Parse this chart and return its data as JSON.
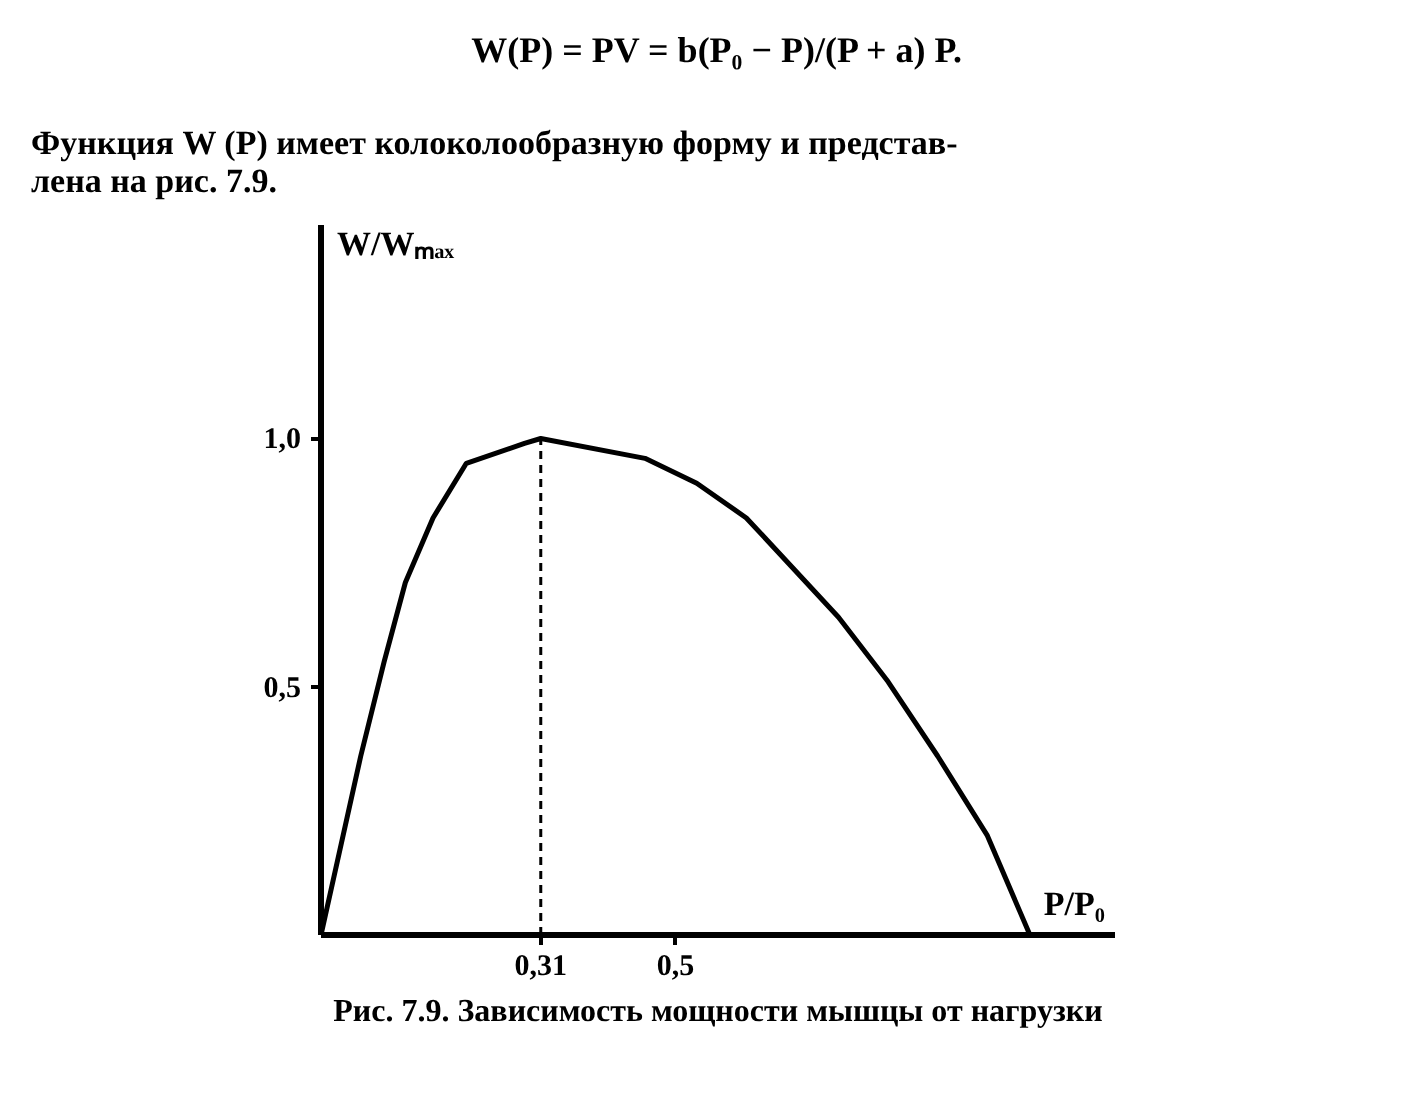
{
  "chart_data": {
    "type": "line",
    "title": "Рис. 7.9. Зависимость мощности мышцы от нагрузки",
    "xlabel": "P/P₀",
    "ylabel": "W/Wₘₐₓ",
    "annotations": [
      "W(P) = PV = b(P₀ − P)/(P + a) P.",
      "Функция W (P) имеет колоколообразную форму и представ-\nлена на рис. 7.9."
    ],
    "x": [
      0,
      0.056,
      0.089,
      0.119,
      0.158,
      0.205,
      0.287,
      0.31,
      0.457,
      0.53,
      0.6,
      0.73,
      0.8,
      0.87,
      0.94,
      1.0
    ],
    "series": [
      {
        "color": "#000000",
        "values": [
          0,
          0.36,
          0.55,
          0.71,
          0.84,
          0.95,
          0.99,
          1.0,
          0.96,
          0.91,
          0.84,
          0.64,
          0.51,
          0.36,
          0.2,
          0
        ]
      }
    ],
    "xlim": [
      0,
      1.12
    ],
    "ylim": [
      0,
      1.43
    ],
    "xticks": [
      {
        "value": 0.31,
        "label": "0,31"
      },
      {
        "value": 0.5,
        "label": "0,5"
      }
    ],
    "yticks": [
      {
        "value": 0.5,
        "label": "0,5"
      },
      {
        "value": 1.0,
        "label": "1,0"
      }
    ],
    "ref_lines": [
      {
        "axis": "x",
        "value": 0.31,
        "label": null,
        "color": "#000000",
        "line_style": "dashed"
      }
    ],
    "marker": "none",
    "line_style": "solid"
  }
}
